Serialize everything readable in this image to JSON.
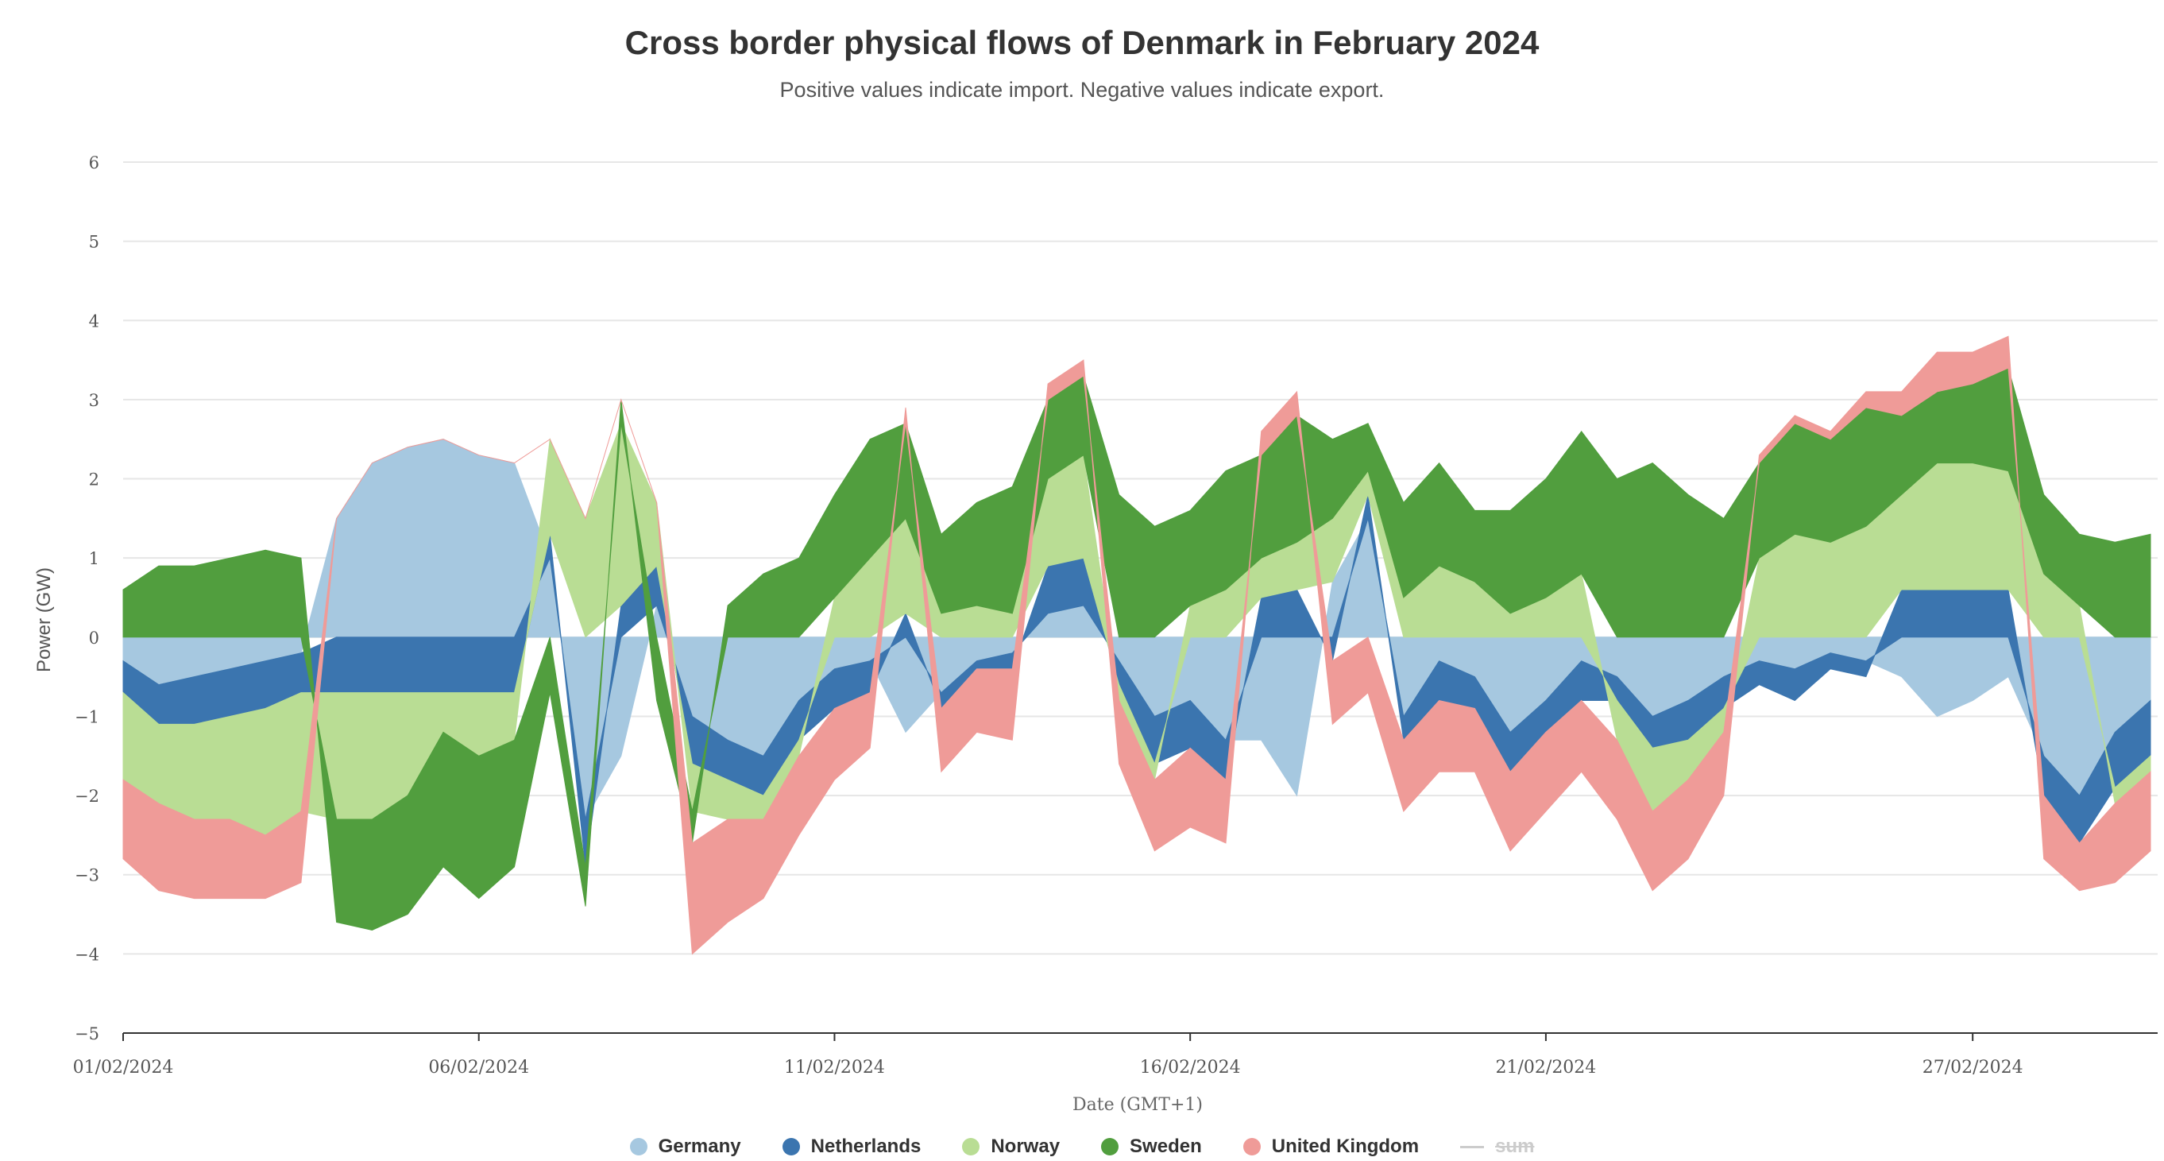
{
  "chart_data": {
    "type": "area",
    "stacked": true,
    "title": "Cross border physical flows of Denmark in February 2024",
    "subtitle": "Positive values indicate import. Negative values indicate export.",
    "xlabel": "Date (GMT+1)",
    "ylabel": "Power (GW)",
    "ylim": [
      -5,
      6
    ],
    "yticks": [
      "6",
      "5",
      "4",
      "3",
      "2",
      "1",
      "0",
      "−1",
      "−2",
      "−3",
      "−4",
      "−5"
    ],
    "xticks": [
      "01/02/2024",
      "06/02/2024",
      "11/02/2024",
      "16/02/2024",
      "21/02/2024",
      "27/02/2024"
    ],
    "xtick_days": [
      1,
      6,
      11,
      16,
      21,
      27
    ],
    "x_range_days": [
      1,
      29.6
    ],
    "grid": true,
    "legend_position": "bottom-center",
    "x": [
      1,
      1.5,
      2,
      2.5,
      3,
      3.5,
      4,
      4.5,
      5,
      5.5,
      6,
      6.5,
      7,
      7.5,
      8,
      8.5,
      9,
      9.5,
      10,
      10.5,
      11,
      11.5,
      12,
      12.5,
      13,
      13.5,
      14,
      14.5,
      15,
      15.5,
      16,
      16.5,
      17,
      17.5,
      18,
      18.5,
      19,
      19.5,
      20,
      20.5,
      21,
      21.5,
      22,
      22.5,
      23,
      23.5,
      24,
      24.5,
      25,
      25.5,
      26,
      26.5,
      27,
      27.5,
      28,
      28.5,
      29,
      29.5
    ],
    "series": [
      {
        "name": "Germany",
        "color": "#a6c8e0",
        "values": [
          -0.3,
          -0.6,
          -0.5,
          -0.4,
          -0.3,
          -0.2,
          1.5,
          2.2,
          2.4,
          2.5,
          2.3,
          2.2,
          1.0,
          -2.3,
          -1.5,
          0.4,
          -1.0,
          -1.3,
          -1.5,
          -0.8,
          -0.4,
          -0.3,
          -1.2,
          -0.7,
          -0.3,
          -0.2,
          0.3,
          0.4,
          -0.3,
          -1.0,
          -0.8,
          -1.3,
          -1.3,
          -2.0,
          0.7,
          1.5,
          -1.0,
          -0.3,
          -0.5,
          -1.2,
          -0.8,
          -0.3,
          -0.5,
          -1.0,
          -0.8,
          -0.5,
          -0.3,
          -0.4,
          -0.2,
          -0.3,
          -0.5,
          -1.0,
          -0.8,
          -0.5,
          -1.5,
          -2.0,
          -1.2,
          -0.8
        ]
      },
      {
        "name": "Netherlands",
        "color": "#3b75af",
        "values": [
          -0.4,
          -0.5,
          -0.6,
          -0.6,
          -0.6,
          -0.5,
          -0.7,
          -0.7,
          -0.7,
          -0.7,
          -0.7,
          -0.7,
          0.3,
          -0.6,
          0.4,
          0.5,
          -0.6,
          -0.5,
          -0.5,
          -0.5,
          -0.5,
          -0.4,
          0.3,
          -0.2,
          -0.1,
          -0.2,
          0.6,
          0.6,
          -0.3,
          -0.6,
          -0.6,
          -0.5,
          0.5,
          0.6,
          -0.3,
          0.3,
          -0.3,
          -0.5,
          -0.4,
          -0.5,
          -0.4,
          -0.5,
          -0.3,
          -0.4,
          -0.5,
          -0.4,
          -0.3,
          -0.4,
          -0.2,
          -0.2,
          0.6,
          0.6,
          0.6,
          0.6,
          -0.5,
          -0.6,
          -0.7,
          -0.7
        ]
      },
      {
        "name": "Norway",
        "color": "#b9dd94",
        "values": [
          -1.1,
          -1.0,
          -1.2,
          -1.3,
          -1.6,
          -1.5,
          -1.6,
          -1.6,
          -1.3,
          -0.5,
          -0.8,
          -0.6,
          1.2,
          1.5,
          2.3,
          0.8,
          -0.6,
          -0.5,
          -0.3,
          -0.2,
          0.5,
          1.0,
          1.2,
          0.3,
          0.4,
          0.3,
          1.1,
          1.3,
          -0.2,
          -0.2,
          0.4,
          0.6,
          0.5,
          0.6,
          0.8,
          0.3,
          0.5,
          0.9,
          0.7,
          0.3,
          0.5,
          0.8,
          -0.5,
          -0.8,
          -0.5,
          -0.3,
          1.0,
          1.3,
          1.2,
          1.4,
          1.2,
          1.6,
          1.6,
          1.5,
          0.8,
          0.4,
          -0.2,
          -0.2
        ]
      },
      {
        "name": "Sweden",
        "color": "#519e3e",
        "values": [
          0.6,
          0.9,
          0.9,
          1.0,
          1.1,
          1.0,
          -1.3,
          -1.4,
          -1.5,
          -1.7,
          -1.8,
          -1.6,
          -0.7,
          -0.5,
          0.3,
          -0.8,
          -0.4,
          0.4,
          0.8,
          1.0,
          1.3,
          1.5,
          1.2,
          1.0,
          1.3,
          1.6,
          1.0,
          1.0,
          1.8,
          1.4,
          1.2,
          1.5,
          1.3,
          1.6,
          1.0,
          0.6,
          1.2,
          1.3,
          0.9,
          1.3,
          1.5,
          1.8,
          2.0,
          2.2,
          1.8,
          1.5,
          1.2,
          1.4,
          1.3,
          1.5,
          1.0,
          0.9,
          1.0,
          1.3,
          1.0,
          0.9,
          1.2,
          1.3
        ]
      },
      {
        "name": "United Kingdom",
        "color": "#ef9b98",
        "values": [
          -1.0,
          -1.1,
          -1.0,
          -1.0,
          -0.8,
          -0.9,
          0.0,
          0.0,
          0.0,
          0.0,
          0.0,
          0.0,
          0.0,
          0.0,
          0.0,
          0.0,
          -1.4,
          -1.3,
          -1.0,
          -1.0,
          -0.9,
          -0.7,
          0.2,
          -0.8,
          -0.8,
          -0.9,
          0.2,
          0.2,
          -0.8,
          -0.9,
          -1.0,
          -0.8,
          0.3,
          0.3,
          -0.8,
          -0.7,
          -0.9,
          -0.9,
          -0.8,
          -1.0,
          -1.0,
          -0.9,
          -1.0,
          -1.0,
          -1.0,
          -0.8,
          0.1,
          0.1,
          0.1,
          0.2,
          0.3,
          0.5,
          0.4,
          0.4,
          -0.8,
          -0.6,
          -1.0,
          -1.0
        ]
      }
    ],
    "extra_legend": {
      "name": "sum",
      "color": "#cccccc",
      "hidden": true
    }
  }
}
